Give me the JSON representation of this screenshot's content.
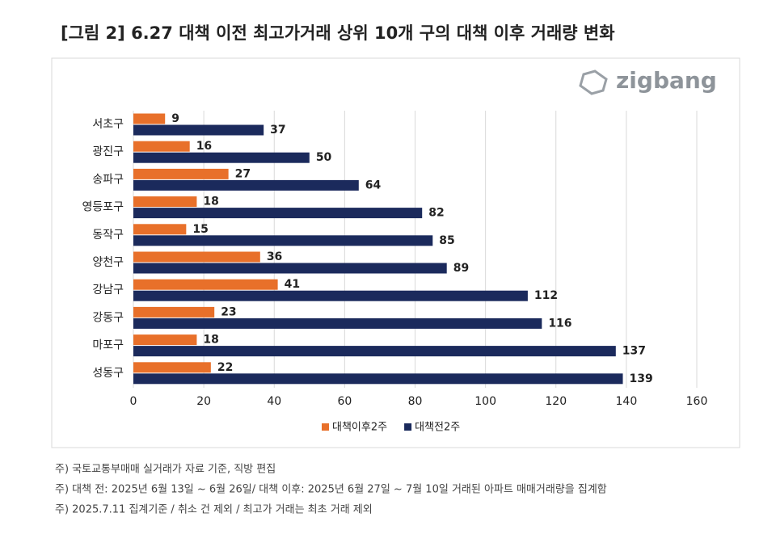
{
  "chart_data": {
    "type": "hbar",
    "title": "[그림 2] 6.27 대책 이전 최고가거래 상위 10개 구의 대책 이후 거래량 변화",
    "logo": "zigbang",
    "categories": [
      "서초구",
      "광진구",
      "송파구",
      "영등포구",
      "동작구",
      "양천구",
      "강남구",
      "강동구",
      "마포구",
      "성동구"
    ],
    "series": [
      {
        "name": "대책이후2주",
        "color": "#e8702a",
        "values": [
          9,
          16,
          27,
          18,
          15,
          36,
          41,
          23,
          18,
          22
        ]
      },
      {
        "name": "대책전2주",
        "color": "#1b2a5c",
        "values": [
          37,
          50,
          64,
          82,
          85,
          89,
          112,
          116,
          137,
          139
        ]
      }
    ],
    "xlim": [
      0,
      160
    ],
    "xticks": [
      0,
      20,
      40,
      60,
      80,
      100,
      120,
      140,
      160
    ],
    "grid": true,
    "legend": "bottom",
    "notes": [
      "주) 국토교통부매매 실거래가 자료 기준, 직방 편집",
      "주) 대책 전: 2025년 6월 13일 ~ 6월 26일/ 대책 이후: 2025년 6월 27일 ~ 7월 10일 거래된 아파트 매매거래량을 집계함",
      "주) 2025.7.11 집계기준 / 취소 건 제외 / 최고가 거래는 최초 거래 제외"
    ]
  }
}
